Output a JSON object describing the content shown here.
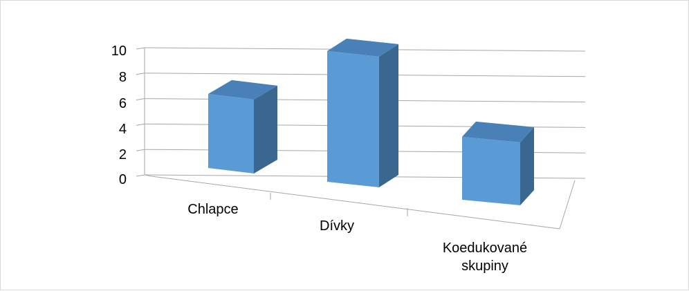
{
  "chart_data": {
    "type": "bar",
    "view": "3d-perspective",
    "categories": [
      [
        "Chlapce"
      ],
      [
        "Dívky"
      ],
      [
        "Koedukované",
        "skupiny"
      ]
    ],
    "values": [
      7,
      9.7,
      6.2
    ],
    "ylim": [
      0,
      10
    ],
    "yticks": [
      "0",
      "2",
      "4",
      "6",
      "8",
      "10"
    ],
    "grid": true,
    "legend": "none",
    "colors": {
      "front": "#5b9bd5",
      "side": "#3a6790",
      "top": "#4a80b8",
      "grid": "#a6a6a6"
    }
  }
}
